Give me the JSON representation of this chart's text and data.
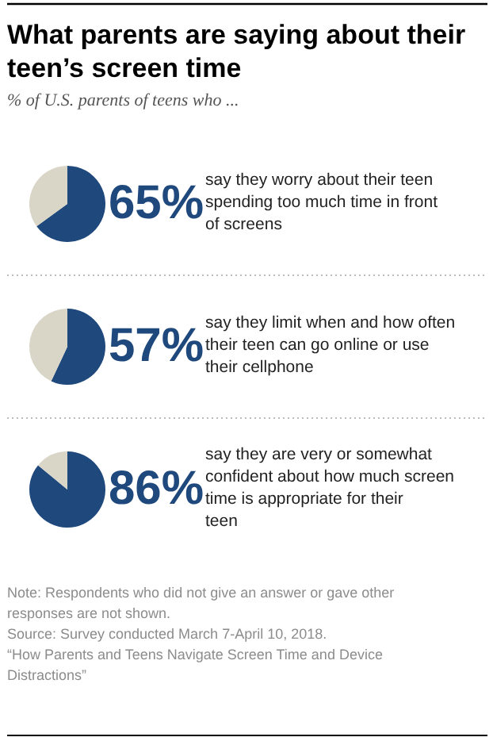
{
  "chart_data": [
    {
      "type": "pie",
      "title": "What parents are saying about their teen’s screen time",
      "subtitle": "% of U.S. parents of teens who ...",
      "categories": [
        "say they worry about their teen spending too much time in front of screens",
        null
      ],
      "values": [
        65,
        35
      ],
      "colors": [
        "#1f497d",
        "#d9d5c7"
      ],
      "value_labels": [
        "65%",
        null
      ]
    },
    {
      "type": "pie",
      "categories": [
        "say they limit when and how often their teen can go online or use their cellphone",
        null
      ],
      "values": [
        57,
        43
      ],
      "colors": [
        "#1f497d",
        "#d9d5c7"
      ],
      "value_labels": [
        "57%",
        null
      ]
    },
    {
      "type": "pie",
      "categories": [
        "say they are very or somewhat confident about how much screen time is appropriate for their teen",
        null
      ],
      "values": [
        86,
        14
      ],
      "colors": [
        "#1f497d",
        "#d9d5c7"
      ],
      "value_labels": [
        "86%",
        null
      ],
      "annotations": [
        "Note: Respondents who did not give an answer or gave other responses are not shown.",
        "Source: Survey conducted March 7-April 10, 2018.",
        "“How Parents and Teens Navigate Screen Time and Device Distractions”"
      ]
    }
  ]
}
